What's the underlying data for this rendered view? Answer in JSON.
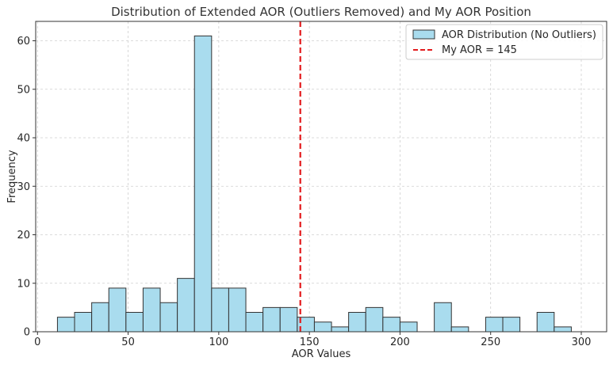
{
  "chart_data": {
    "type": "bar",
    "title": "Distribution of Extended AOR (Outliers Removed) and My AOR Position",
    "xlabel": "AOR Values",
    "ylabel": "Frequency",
    "xlim": [
      -1,
      314
    ],
    "ylim": [
      0,
      64
    ],
    "xticks": [
      0,
      50,
      100,
      150,
      200,
      250,
      300
    ],
    "yticks": [
      0,
      10,
      20,
      30,
      40,
      50,
      60
    ],
    "grid": true,
    "legend_position": "top-right",
    "bin_width": 9.45,
    "series": [
      {
        "name": "AOR Distribution (No Outliers)",
        "color": "#a9dcee",
        "edge_color": "#333333",
        "bin_starts": [
          11,
          20.45,
          29.9,
          39.35,
          48.8,
          58.25,
          67.7,
          77.15,
          86.6,
          96.05,
          105.5,
          114.95,
          124.4,
          133.85,
          143.3,
          152.75,
          162.2,
          171.65,
          181.1,
          190.55,
          200,
          209.45,
          218.9,
          228.35,
          237.8,
          247.25,
          256.7,
          266.15,
          275.6,
          285.05
        ],
        "values": [
          3,
          4,
          6,
          9,
          4,
          9,
          6,
          11,
          61,
          9,
          9,
          4,
          5,
          5,
          3,
          2,
          1,
          4,
          5,
          3,
          2,
          0,
          6,
          1,
          0,
          3,
          3,
          0,
          4,
          1
        ]
      }
    ],
    "reference_line": {
      "name": "My AOR = 145",
      "x": 145,
      "color": "#e31a1c",
      "style": "dashed"
    }
  }
}
